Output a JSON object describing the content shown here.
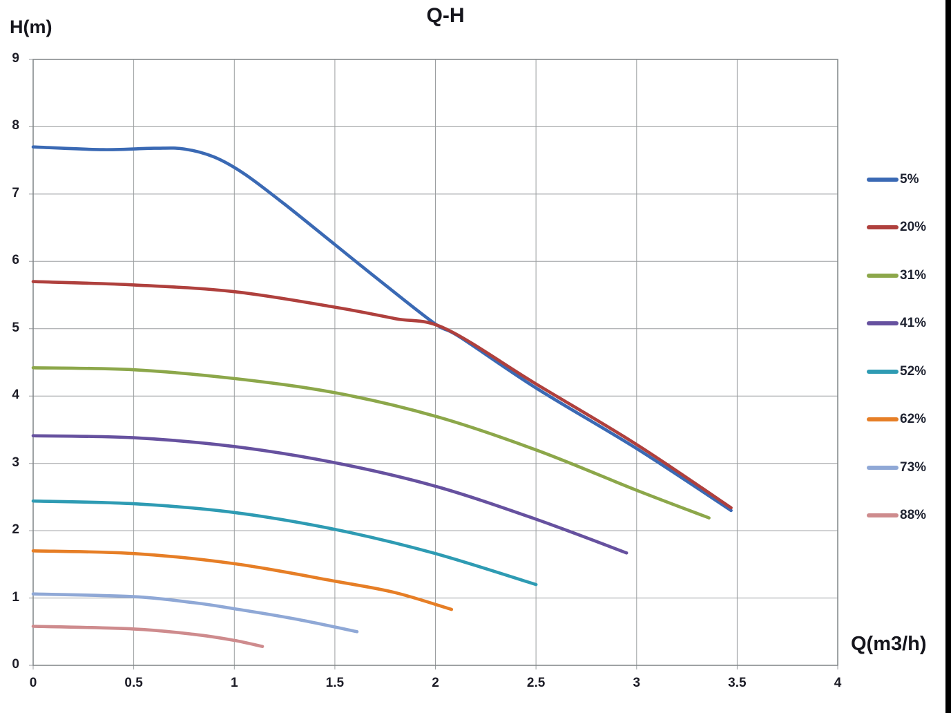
{
  "header": {
    "title": "Q-H"
  },
  "axes": {
    "y_label": "H(m)",
    "x_label": "Q(m3/h)"
  },
  "chart_data": {
    "type": "line",
    "title": "Q-H",
    "xlabel": "Q(m3/h)",
    "ylabel": "H(m)",
    "xlim": [
      0,
      4
    ],
    "ylim": [
      0,
      9
    ],
    "x_ticks": [
      0,
      0.5,
      1,
      1.5,
      2,
      2.5,
      3,
      3.5,
      4
    ],
    "y_ticks": [
      0,
      1,
      2,
      3,
      4,
      5,
      6,
      7,
      8,
      9
    ],
    "grid": true,
    "grid_color": "#9b9ea0",
    "border_color": "#7f8486",
    "legend_position": "right",
    "series": [
      {
        "name": "5%",
        "color": "#3A69B4",
        "points": [
          [
            0,
            7.7
          ],
          [
            0.35,
            7.66
          ],
          [
            0.6,
            7.68
          ],
          [
            0.75,
            7.67
          ],
          [
            0.9,
            7.55
          ],
          [
            1.05,
            7.3
          ],
          [
            1.25,
            6.85
          ],
          [
            1.5,
            6.25
          ],
          [
            1.75,
            5.65
          ],
          [
            2.0,
            5.07
          ],
          [
            2.12,
            4.88
          ],
          [
            2.5,
            4.12
          ],
          [
            3.0,
            3.22
          ],
          [
            3.47,
            2.3
          ]
        ]
      },
      {
        "name": "20%",
        "color": "#AF403D",
        "points": [
          [
            0,
            5.7
          ],
          [
            0.5,
            5.65
          ],
          [
            1.0,
            5.55
          ],
          [
            1.5,
            5.32
          ],
          [
            1.8,
            5.15
          ],
          [
            2.05,
            5.0
          ],
          [
            2.5,
            4.18
          ],
          [
            3.0,
            3.28
          ],
          [
            3.47,
            2.34
          ]
        ]
      },
      {
        "name": "31%",
        "color": "#8CA74A",
        "points": [
          [
            0,
            4.42
          ],
          [
            0.5,
            4.39
          ],
          [
            1.0,
            4.26
          ],
          [
            1.5,
            4.05
          ],
          [
            2.0,
            3.7
          ],
          [
            2.5,
            3.2
          ],
          [
            3.0,
            2.6
          ],
          [
            3.36,
            2.19
          ]
        ]
      },
      {
        "name": "41%",
        "color": "#66519F",
        "points": [
          [
            0,
            3.41
          ],
          [
            0.5,
            3.38
          ],
          [
            1.0,
            3.25
          ],
          [
            1.5,
            3.01
          ],
          [
            2.0,
            2.66
          ],
          [
            2.5,
            2.17
          ],
          [
            2.95,
            1.67
          ]
        ]
      },
      {
        "name": "52%",
        "color": "#2E9BB3",
        "points": [
          [
            0,
            2.44
          ],
          [
            0.5,
            2.4
          ],
          [
            1.0,
            2.27
          ],
          [
            1.5,
            2.02
          ],
          [
            2.0,
            1.66
          ],
          [
            2.5,
            1.2
          ]
        ]
      },
      {
        "name": "62%",
        "color": "#E67E26",
        "points": [
          [
            0,
            1.7
          ],
          [
            0.5,
            1.66
          ],
          [
            1.0,
            1.51
          ],
          [
            1.5,
            1.25
          ],
          [
            1.8,
            1.08
          ],
          [
            2.08,
            0.83
          ]
        ]
      },
      {
        "name": "73%",
        "color": "#8FA8D6",
        "points": [
          [
            0,
            1.06
          ],
          [
            0.5,
            1.02
          ],
          [
            0.8,
            0.93
          ],
          [
            1.0,
            0.84
          ],
          [
            1.3,
            0.69
          ],
          [
            1.61,
            0.5
          ]
        ]
      },
      {
        "name": "88%",
        "color": "#CE8B8D",
        "points": [
          [
            0,
            0.58
          ],
          [
            0.5,
            0.54
          ],
          [
            0.8,
            0.46
          ],
          [
            1.0,
            0.37
          ],
          [
            1.14,
            0.28
          ]
        ]
      }
    ]
  }
}
